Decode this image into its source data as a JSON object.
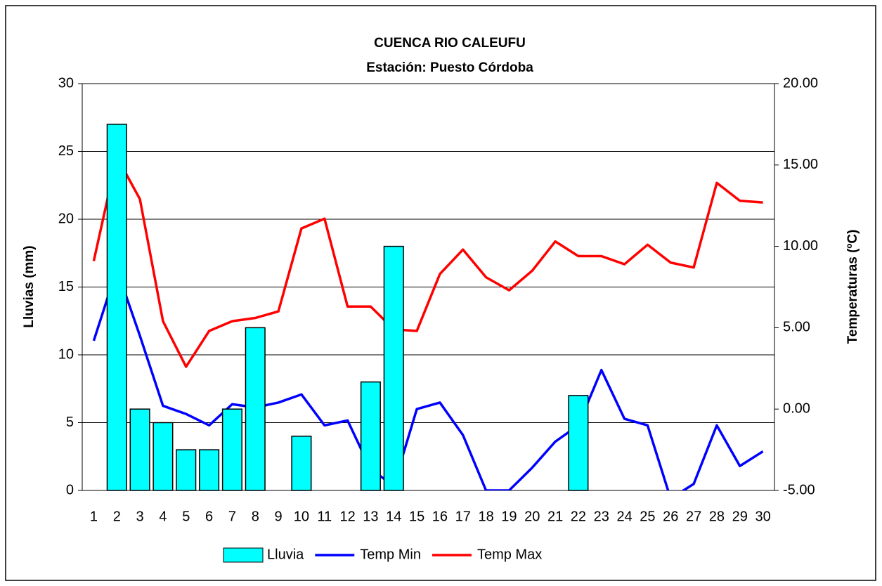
{
  "chart_data": {
    "type": "bar-line",
    "title": "CUENCA RIO CALEUFU",
    "subtitle": "Estación: Puesto Córdoba",
    "ylabel": "Lluvias (mm)",
    "y2label": "Temperaturas (ºC)",
    "categories": [
      "1",
      "2",
      "3",
      "4",
      "5",
      "6",
      "7",
      "8",
      "9",
      "10",
      "11",
      "12",
      "13",
      "14",
      "15",
      "16",
      "17",
      "18",
      "19",
      "20",
      "21",
      "22",
      "23",
      "24",
      "25",
      "26",
      "27",
      "28",
      "29",
      "30"
    ],
    "series": [
      {
        "name": "Lluvia",
        "type": "bar",
        "color": "#00ffff",
        "values": [
          0,
          27,
          6,
          5,
          3,
          3,
          6,
          12,
          0,
          4,
          0,
          0,
          8,
          18,
          0,
          0,
          0,
          0,
          0,
          0,
          0,
          7,
          0,
          0,
          0,
          0,
          0,
          0,
          0,
          0
        ]
      },
      {
        "name": "Temp Min",
        "type": "line",
        "axis": "y2",
        "color": "#0000ff",
        "values": [
          4.2,
          8.6,
          4.5,
          0.2,
          -0.3,
          -1.0,
          0.3,
          0.1,
          0.4,
          0.9,
          -1.0,
          -0.7,
          -3.7,
          -4.7,
          0.0,
          0.4,
          -1.6,
          -5.0,
          -5.0,
          -3.6,
          -2.0,
          -1.0,
          2.4,
          -0.6,
          -1.0,
          -5.5,
          -4.6,
          -1.0,
          -3.5,
          -2.6
        ]
      },
      {
        "name": "Temp Max",
        "type": "line",
        "axis": "y2",
        "color": "#ff0000",
        "values": [
          9.1,
          15.5,
          12.9,
          5.4,
          2.6,
          4.8,
          5.4,
          5.6,
          6.0,
          11.1,
          11.7,
          6.3,
          6.3,
          4.9,
          4.8,
          8.3,
          9.8,
          8.1,
          7.3,
          8.5,
          10.3,
          9.4,
          9.4,
          8.9,
          10.1,
          9.0,
          8.7,
          13.9,
          12.8,
          12.7
        ]
      }
    ],
    "ylim": [
      0,
      30
    ],
    "yticks": [
      0,
      5,
      10,
      15,
      20,
      25,
      30
    ],
    "y2lim": [
      -5,
      20
    ],
    "y2ticks": [
      {
        "value": -5,
        "label": "-5.00"
      },
      {
        "value": 0,
        "label": "0.00"
      },
      {
        "value": 5,
        "label": "5.00"
      },
      {
        "value": 10,
        "label": "10.00"
      },
      {
        "value": 15,
        "label": "15.00"
      },
      {
        "value": 20,
        "label": "20.00"
      }
    ],
    "grid": true,
    "legend": "bottom"
  }
}
